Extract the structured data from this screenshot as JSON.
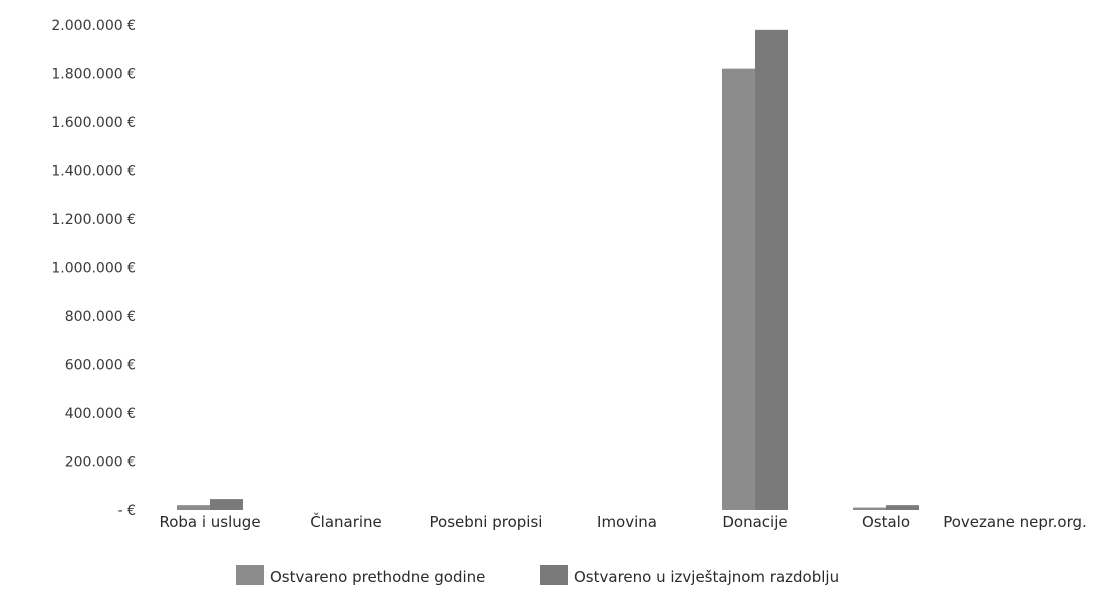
{
  "chart_data": {
    "type": "bar",
    "categories": [
      "Roba i usluge",
      "Članarine",
      "Posebni propisi",
      "Imovina",
      "Donacije",
      "Ostalo",
      "Povezane nepr.org."
    ],
    "series": [
      {
        "name": "Ostvareno prethodne godine",
        "color": "#8c8c8c",
        "values": [
          20000,
          0,
          0,
          0,
          1820000,
          10000,
          0
        ]
      },
      {
        "name": "Ostvareno u izvještajnom razdoblju",
        "color": "#7a7a7a",
        "values": [
          45000,
          0,
          0,
          0,
          1980000,
          20000,
          0
        ]
      }
    ],
    "yticks": [
      "- €",
      "200.000 €",
      "400.000 €",
      "600.000 €",
      "800.000 €",
      "1.000.000 €",
      "1.200.000 €",
      "1.400.000 €",
      "1.600.000 €",
      "1.800.000 €",
      "2.000.000 €"
    ],
    "ylim": [
      0,
      2000000
    ],
    "grid": false,
    "legend_position": "bottom"
  }
}
